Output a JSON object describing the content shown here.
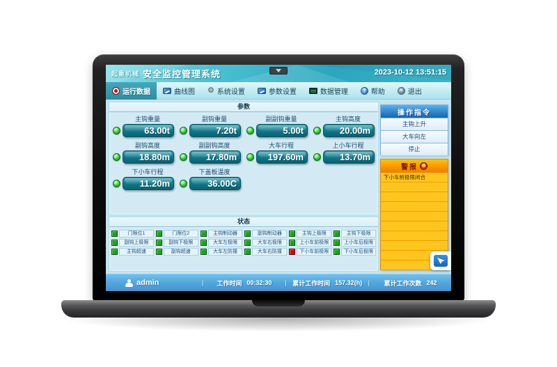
{
  "titlebar": {
    "brand": "起重机械",
    "app_title": "安全监控管理系统",
    "datetime": "2023-10-12 13:51:15"
  },
  "toolbar": {
    "tabs": [
      {
        "label": "运行数据",
        "icon": "record-icon",
        "active": true
      },
      {
        "label": "曲线图",
        "icon": "chart-icon",
        "active": false
      },
      {
        "label": "系统设置",
        "icon": "gear-icon",
        "active": false
      },
      {
        "label": "参数设置",
        "icon": "monitor-icon",
        "active": false
      },
      {
        "label": "数据管理",
        "icon": "database-icon",
        "active": false
      },
      {
        "label": "帮助",
        "icon": "help-icon",
        "active": false
      },
      {
        "label": "退出",
        "icon": "exit-icon",
        "active": false
      }
    ],
    "glyphs": {
      "gear": "⚙",
      "help": "?",
      "exit": "✕"
    }
  },
  "parameters": {
    "title": "参数",
    "items": [
      {
        "label": "主钩重量",
        "value": "63.00t"
      },
      {
        "label": "副钩重量",
        "value": "7.20t"
      },
      {
        "label": "副副钩重量",
        "value": "5.00t"
      },
      {
        "label": "主钩高度",
        "value": "20.00m"
      },
      {
        "label": "副钩高度",
        "value": "18.80m"
      },
      {
        "label": "副副钩高度",
        "value": "17.80m"
      },
      {
        "label": "大车行程",
        "value": "197.60m"
      },
      {
        "label": "上小车行程",
        "value": "13.70m"
      },
      {
        "label": "下小车行程",
        "value": "11.20m"
      },
      {
        "label": "下盖板温度",
        "value": "36.00C"
      }
    ]
  },
  "status": {
    "title": "状态",
    "items": [
      {
        "label": "门限位1",
        "state": "ok"
      },
      {
        "label": "门限位2",
        "state": "ok"
      },
      {
        "label": "主钩制动器",
        "state": "ok"
      },
      {
        "label": "副钩制动器",
        "state": "ok"
      },
      {
        "label": "主钩上极限",
        "state": "ok"
      },
      {
        "label": "主钩下极限",
        "state": "ok"
      },
      {
        "label": "副钩上极限",
        "state": "ok"
      },
      {
        "label": "副钩下极限",
        "state": "ok"
      },
      {
        "label": "大车左极限",
        "state": "ok"
      },
      {
        "label": "大车右极限",
        "state": "ok"
      },
      {
        "label": "上小车前极限",
        "state": "ok"
      },
      {
        "label": "上小车后极限",
        "state": "ok"
      },
      {
        "label": "主钩超速",
        "state": "ok"
      },
      {
        "label": "副钩超速",
        "state": "ok"
      },
      {
        "label": "大车左防撞",
        "state": "ok"
      },
      {
        "label": "大车右防撞",
        "state": "ok"
      },
      {
        "label": "下小车前极限",
        "state": "alarm"
      },
      {
        "label": "下小车后极限",
        "state": "ok"
      }
    ]
  },
  "commands": {
    "title": "操作指令",
    "items": [
      "主钩上升",
      "大车向左",
      "停止"
    ]
  },
  "alarms": {
    "title": "警报",
    "entries": [
      "下小车前极限闭合"
    ],
    "empty_rows": 9
  },
  "statusbar": {
    "user": "admin",
    "separator": "|",
    "work_time_label": "工作时间",
    "work_time": "00:32:30",
    "total_time_label": "累计工作时间",
    "total_time": "157.32(h)",
    "total_count_label": "累计工作次数",
    "total_count": "242"
  },
  "colors": {
    "titlebar_teal": "#2ba6bd",
    "toolbar_active": "#2b8ea2",
    "value_box_teal": "#117c8c",
    "led_green": "#3ecf3e",
    "status_ok_green": "#18a418",
    "status_alarm_red": "#d40000",
    "commands_header_blue": "#2f85cc",
    "alarm_header_orange": "#fa9600",
    "alarm_row_yellow": "#ffc51f",
    "statusbar_blue": "#55a9dd"
  }
}
